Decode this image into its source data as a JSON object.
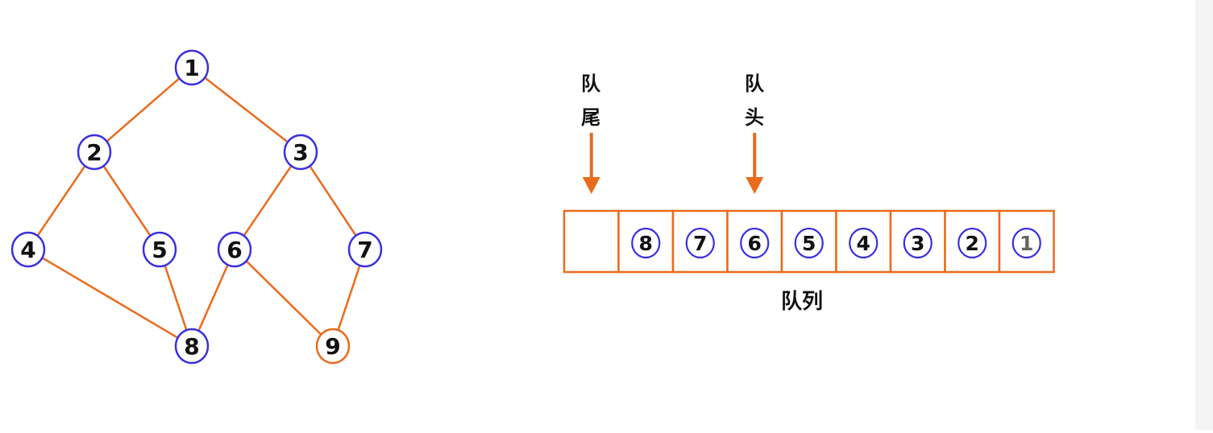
{
  "colors": {
    "visited": "#3b2fe0",
    "current": "#ea6b1c",
    "edge": "#ea6b1c",
    "text": "#111111",
    "dequeued_text": "#666666"
  },
  "graph": {
    "nodes": [
      {
        "id": "1",
        "label": "1",
        "state": "visited"
      },
      {
        "id": "2",
        "label": "2",
        "state": "visited"
      },
      {
        "id": "3",
        "label": "3",
        "state": "visited"
      },
      {
        "id": "4",
        "label": "4",
        "state": "visited"
      },
      {
        "id": "5",
        "label": "5",
        "state": "visited"
      },
      {
        "id": "6",
        "label": "6",
        "state": "visited"
      },
      {
        "id": "7",
        "label": "7",
        "state": "visited"
      },
      {
        "id": "8",
        "label": "8",
        "state": "visited"
      },
      {
        "id": "9",
        "label": "9",
        "state": "current"
      }
    ],
    "edges": [
      [
        "1",
        "2"
      ],
      [
        "1",
        "3"
      ],
      [
        "2",
        "4"
      ],
      [
        "2",
        "5"
      ],
      [
        "3",
        "6"
      ],
      [
        "3",
        "7"
      ],
      [
        "4",
        "8"
      ],
      [
        "5",
        "8"
      ],
      [
        "6",
        "8"
      ],
      [
        "6",
        "9"
      ],
      [
        "7",
        "9"
      ]
    ]
  },
  "queue": {
    "tail_label": "队尾",
    "head_label": "队头",
    "caption": "队列",
    "cells": [
      "",
      "8",
      "7",
      "6",
      "5",
      "4",
      "3",
      "2",
      "1"
    ],
    "tail_index": 0,
    "head_index": 3,
    "dequeued": [
      "1"
    ]
  }
}
